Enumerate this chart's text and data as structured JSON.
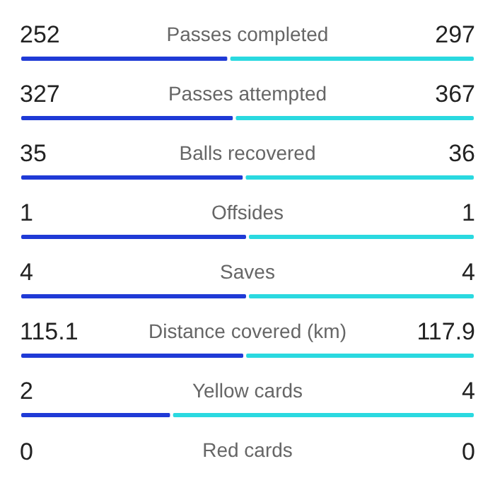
{
  "chart_data": [
    {
      "type": "bar",
      "title": "Passes completed",
      "orientation": "horizontal",
      "stacked": true,
      "data_labels": true,
      "tick_labels": false,
      "categories": [
        null
      ],
      "xlim": [
        0,
        549
      ],
      "series": [
        {
          "color": "#1f3ad6",
          "values": [
            252
          ]
        },
        {
          "color": "#2ad9e0",
          "values": [
            297
          ]
        }
      ]
    },
    {
      "type": "bar",
      "title": "Passes attempted",
      "orientation": "horizontal",
      "stacked": true,
      "data_labels": true,
      "tick_labels": false,
      "categories": [
        null
      ],
      "xlim": [
        0,
        694
      ],
      "series": [
        {
          "color": "#1f3ad6",
          "values": [
            327
          ]
        },
        {
          "color": "#2ad9e0",
          "values": [
            367
          ]
        }
      ]
    },
    {
      "type": "bar",
      "title": "Balls recovered",
      "orientation": "horizontal",
      "stacked": true,
      "data_labels": true,
      "tick_labels": false,
      "categories": [
        null
      ],
      "xlim": [
        0,
        71
      ],
      "series": [
        {
          "color": "#1f3ad6",
          "values": [
            35
          ]
        },
        {
          "color": "#2ad9e0",
          "values": [
            36
          ]
        }
      ]
    },
    {
      "type": "bar",
      "title": "Offsides",
      "orientation": "horizontal",
      "stacked": true,
      "data_labels": true,
      "tick_labels": false,
      "categories": [
        null
      ],
      "xlim": [
        0,
        2
      ],
      "series": [
        {
          "color": "#1f3ad6",
          "values": [
            1
          ]
        },
        {
          "color": "#2ad9e0",
          "values": [
            1
          ]
        }
      ]
    },
    {
      "type": "bar",
      "title": "Saves",
      "orientation": "horizontal",
      "stacked": true,
      "data_labels": true,
      "tick_labels": false,
      "categories": [
        null
      ],
      "xlim": [
        0,
        8
      ],
      "series": [
        {
          "color": "#1f3ad6",
          "values": [
            4
          ]
        },
        {
          "color": "#2ad9e0",
          "values": [
            4
          ]
        }
      ]
    },
    {
      "type": "bar",
      "title": "Distance covered (km)",
      "orientation": "horizontal",
      "stacked": true,
      "data_labels": true,
      "tick_labels": false,
      "categories": [
        null
      ],
      "xlim": [
        0,
        233
      ],
      "series": [
        {
          "color": "#1f3ad6",
          "values": [
            115.1
          ]
        },
        {
          "color": "#2ad9e0",
          "values": [
            117.9
          ]
        }
      ]
    },
    {
      "type": "bar",
      "title": "Yellow cards",
      "orientation": "horizontal",
      "stacked": true,
      "data_labels": true,
      "tick_labels": false,
      "categories": [
        null
      ],
      "xlim": [
        0,
        6
      ],
      "series": [
        {
          "color": "#1f3ad6",
          "values": [
            2
          ]
        },
        {
          "color": "#2ad9e0",
          "values": [
            4
          ]
        }
      ]
    },
    {
      "type": "other",
      "title": "Red cards",
      "annotations": [
        "0",
        "0"
      ]
    }
  ]
}
